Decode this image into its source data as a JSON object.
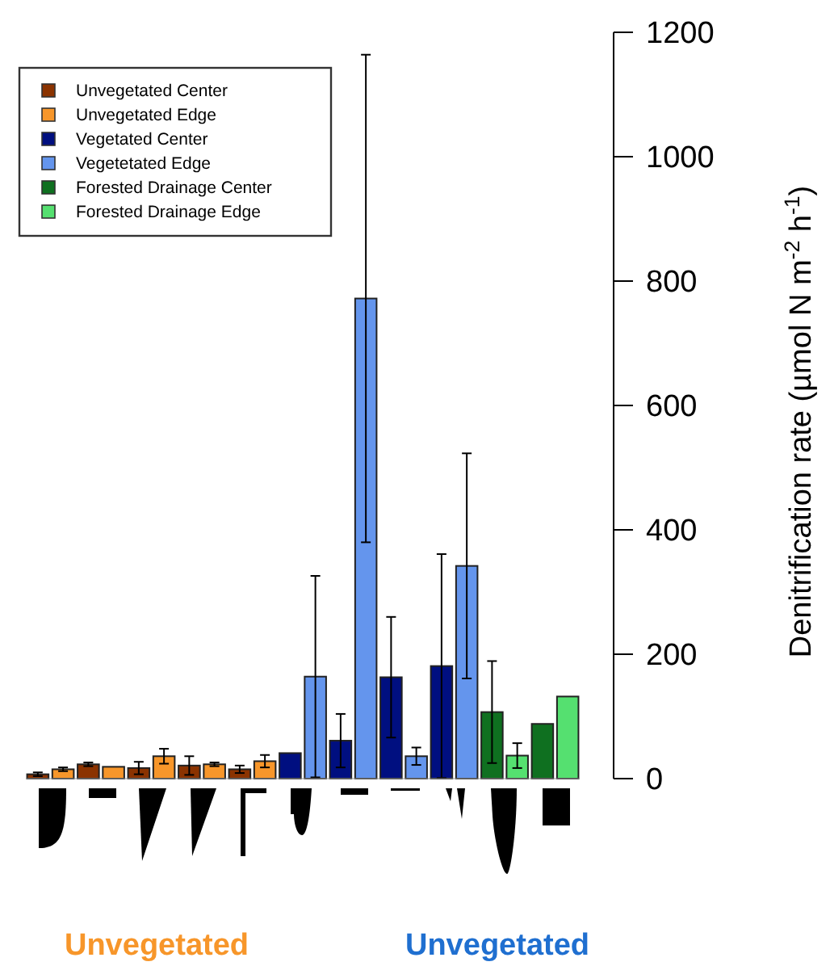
{
  "chart_data": {
    "type": "bar",
    "ylabel": "Denitrification rate (µmol N m$^{-2}$ h$^{-1}$)",
    "categories": [
      null,
      null,
      null,
      null,
      null,
      null,
      null,
      null,
      null,
      null,
      null,
      null,
      null,
      null,
      null,
      null,
      null,
      null,
      null,
      null,
      null,
      null
    ],
    "series": [
      {
        "name": "Unvegetated Center",
        "color": "#8b3300",
        "values": [
          7,
          null,
          23,
          null,
          17,
          null,
          21,
          null,
          15,
          null,
          null,
          null,
          null,
          null,
          null,
          null,
          null,
          null,
          null,
          null,
          null,
          null
        ],
        "errors": [
          3,
          null,
          3,
          null,
          10,
          null,
          15,
          null,
          6,
          null,
          null,
          null,
          null,
          null,
          null,
          null,
          null,
          null,
          null,
          null,
          null,
          null
        ]
      },
      {
        "name": "Unvegetated Edge",
        "color": "#f7962a",
        "values": [
          null,
          15,
          null,
          19,
          null,
          36,
          null,
          23,
          null,
          28,
          null,
          null,
          null,
          null,
          null,
          null,
          null,
          null,
          null,
          null,
          null,
          null
        ],
        "errors": [
          null,
          3,
          null,
          null,
          null,
          12,
          null,
          3,
          null,
          10,
          null,
          null,
          null,
          null,
          null,
          null,
          null,
          null,
          null,
          null,
          null,
          null
        ]
      },
      {
        "name": "Vegetated Center",
        "color": "#000f80",
        "values": [
          null,
          null,
          null,
          null,
          null,
          null,
          null,
          null,
          null,
          null,
          41,
          null,
          61,
          null,
          163,
          null,
          181,
          null,
          null,
          null,
          null,
          null
        ],
        "errors": [
          null,
          null,
          null,
          null,
          null,
          null,
          null,
          null,
          null,
          null,
          null,
          null,
          43,
          null,
          97,
          null,
          180,
          null,
          null,
          null,
          null,
          null
        ]
      },
      {
        "name": "Vegetetated Edge",
        "color": "#6495ed",
        "values": [
          null,
          null,
          null,
          null,
          null,
          null,
          null,
          null,
          null,
          null,
          null,
          164,
          null,
          772,
          null,
          36,
          null,
          342,
          null,
          null,
          null,
          null
        ],
        "errors": [
          null,
          null,
          null,
          null,
          null,
          null,
          null,
          null,
          null,
          null,
          null,
          162,
          null,
          392,
          null,
          14,
          null,
          181,
          null,
          null,
          null,
          null
        ]
      },
      {
        "name": "Forested Drainage Center",
        "color": "#0f7020",
        "values": [
          null,
          null,
          null,
          null,
          null,
          null,
          null,
          null,
          null,
          null,
          null,
          null,
          null,
          null,
          null,
          null,
          null,
          null,
          107,
          null,
          88,
          null
        ],
        "errors": [
          null,
          null,
          null,
          null,
          null,
          null,
          null,
          null,
          null,
          null,
          null,
          null,
          null,
          null,
          null,
          null,
          null,
          null,
          82,
          null,
          null,
          null
        ]
      },
      {
        "name": "Forested Drainage Edge",
        "color": "#55e070",
        "values": [
          null,
          null,
          null,
          null,
          null,
          null,
          null,
          null,
          null,
          null,
          null,
          null,
          null,
          null,
          null,
          null,
          null,
          null,
          null,
          37,
          null,
          132
        ],
        "errors": [
          null,
          null,
          null,
          null,
          null,
          null,
          null,
          null,
          null,
          null,
          null,
          null,
          null,
          null,
          null,
          null,
          null,
          null,
          null,
          20,
          null,
          null
        ]
      }
    ],
    "ylim": [
      0,
      1200
    ],
    "yticks": [
      0,
      200,
      400,
      600,
      800,
      1000,
      1200
    ],
    "legend": "top left",
    "annotations": [
      "Unvegetated",
      "Unvegetated"
    ]
  }
}
